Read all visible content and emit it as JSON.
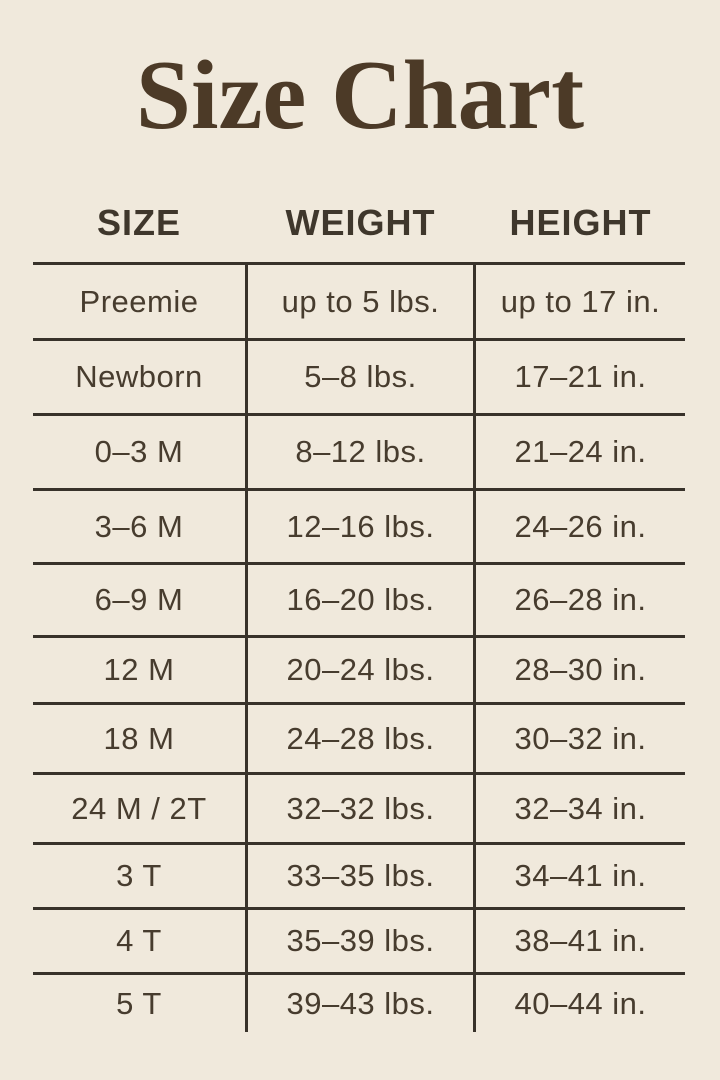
{
  "page": {
    "title": "Size Chart",
    "background": "#f0e9dc",
    "title_color": "#4c3a27",
    "text_color": "#473c2e",
    "header_color": "#3f372c",
    "line_color": "#38322a"
  },
  "chart_data": {
    "type": "table",
    "title": "Size Chart",
    "columns": [
      "SIZE",
      "WEIGHT",
      "HEIGHT"
    ],
    "rows": [
      [
        "Preemie",
        "up to 5 lbs.",
        "up to 17 in."
      ],
      [
        "Newborn",
        "5–8 lbs.",
        "17–21 in."
      ],
      [
        "0–3 M",
        "8–12 lbs.",
        "21–24 in."
      ],
      [
        "3–6 M",
        "12–16 lbs.",
        "24–26 in."
      ],
      [
        "6–9 M",
        "16–20 lbs.",
        "26–28 in."
      ],
      [
        "12 M",
        "20–24 lbs.",
        "28–30 in."
      ],
      [
        "18 M",
        "24–28 lbs.",
        "30–32 in."
      ],
      [
        "24 M / 2T",
        "32–32 lbs.",
        "32–34 in."
      ],
      [
        "3 T",
        "33–35 lbs.",
        "34–41 in."
      ],
      [
        "4 T",
        "35–39 lbs.",
        "38–41 in."
      ],
      [
        "5 T",
        "39–43 lbs.",
        "40–44 in."
      ]
    ],
    "layout": {
      "grid": "horizontal rules between all rows, no outer side borders, no bottom border; two vertical dividers between the three columns extending the full table height",
      "legend_position": "none"
    }
  }
}
